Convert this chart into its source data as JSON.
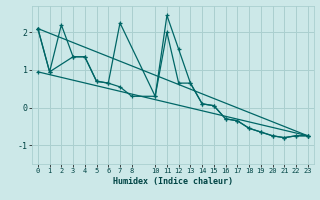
{
  "title": "",
  "xlabel": "Humidex (Indice chaleur)",
  "ylabel": "",
  "bg_color": "#cce8e8",
  "grid_color": "#aacfcf",
  "line_color": "#006666",
  "xlim": [
    -0.5,
    23.5
  ],
  "ylim": [
    -1.5,
    2.7
  ],
  "xticks": [
    0,
    1,
    2,
    3,
    4,
    5,
    6,
    7,
    8,
    10,
    11,
    12,
    13,
    14,
    15,
    16,
    17,
    18,
    19,
    20,
    21,
    22,
    23
  ],
  "yticks": [
    -1,
    0,
    1,
    2
  ],
  "lines": [
    {
      "x": [
        0,
        1,
        2,
        3,
        4,
        5,
        6,
        7,
        10,
        11,
        12,
        13,
        14,
        15,
        16,
        17,
        18,
        19,
        20,
        21,
        22,
        23
      ],
      "y": [
        2.1,
        0.95,
        2.2,
        1.35,
        1.35,
        0.7,
        0.65,
        2.25,
        0.3,
        2.45,
        1.55,
        0.65,
        0.1,
        0.05,
        -0.3,
        -0.35,
        -0.55,
        -0.65,
        -0.75,
        -0.8,
        -0.75,
        -0.75
      ]
    },
    {
      "x": [
        0,
        1,
        3,
        4,
        5,
        6,
        7,
        8,
        10,
        11,
        12,
        13,
        14,
        15,
        16,
        17,
        18,
        19,
        20,
        21,
        22,
        23
      ],
      "y": [
        2.1,
        0.95,
        1.35,
        1.35,
        0.7,
        0.65,
        0.55,
        0.3,
        0.3,
        2.0,
        0.65,
        0.65,
        0.1,
        0.05,
        -0.3,
        -0.35,
        -0.55,
        -0.65,
        -0.75,
        -0.8,
        -0.75,
        -0.75
      ]
    },
    {
      "x": [
        0,
        23
      ],
      "y": [
        0.95,
        -0.75
      ]
    },
    {
      "x": [
        0,
        23
      ],
      "y": [
        2.1,
        -0.75
      ]
    }
  ]
}
